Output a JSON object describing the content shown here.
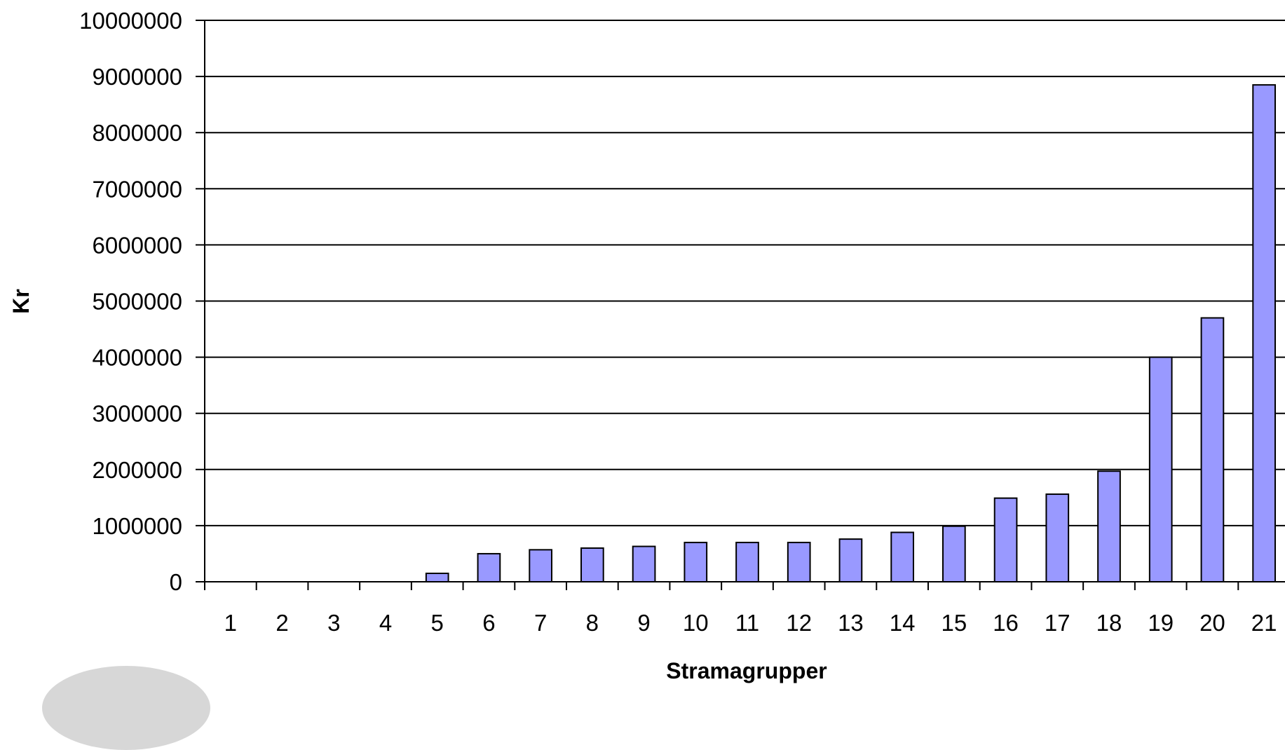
{
  "chart_data": {
    "type": "bar",
    "categories": [
      "1",
      "2",
      "3",
      "4",
      "5",
      "6",
      "7",
      "8",
      "9",
      "10",
      "11",
      "12",
      "13",
      "14",
      "15",
      "16",
      "17",
      "18",
      "19",
      "20",
      "21"
    ],
    "values": [
      0,
      0,
      0,
      0,
      150000,
      500000,
      570000,
      600000,
      630000,
      700000,
      700000,
      700000,
      760000,
      880000,
      990000,
      1490000,
      1560000,
      1970000,
      4000000,
      4700000,
      8850000
    ],
    "ylim": [
      0,
      10000000
    ],
    "yticks": [
      0,
      1000000,
      2000000,
      3000000,
      4000000,
      5000000,
      6000000,
      7000000,
      8000000,
      9000000,
      10000000
    ],
    "xlabel": "Stramagrupper",
    "ylabel": "Kr",
    "grid": true,
    "bar_color": "#9999ff",
    "bar_border_color": "#000000"
  }
}
